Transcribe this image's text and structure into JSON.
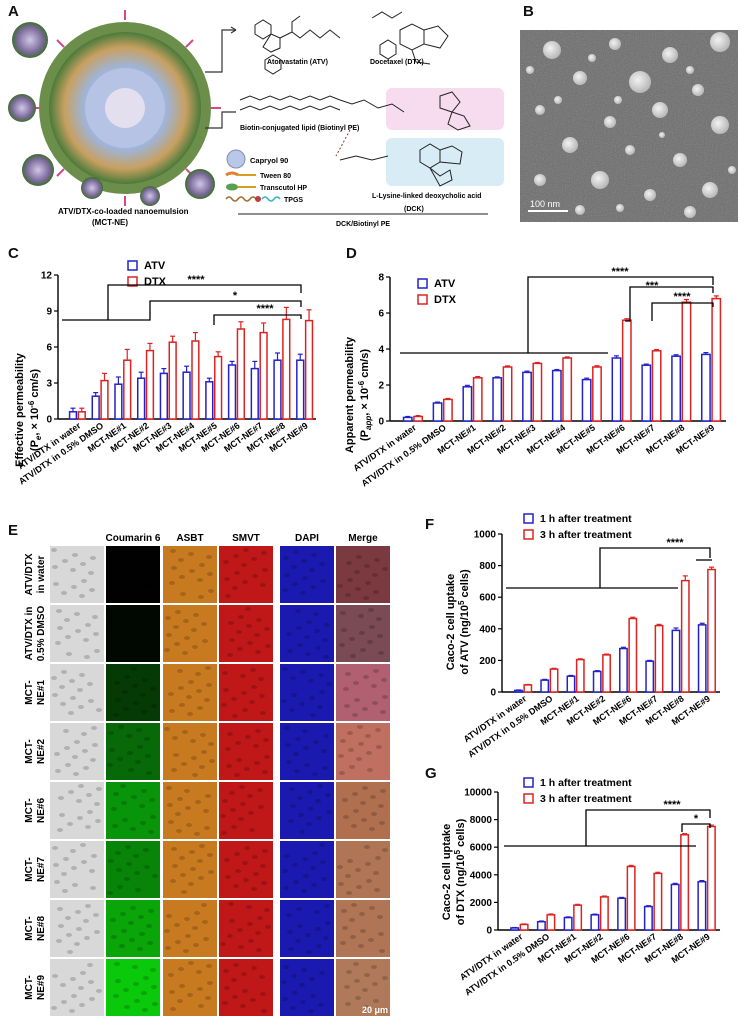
{
  "panels": {
    "a": "A",
    "b": "B",
    "c": "C",
    "d": "D",
    "e": "E",
    "f": "F",
    "g": "G"
  },
  "panelA": {
    "structures": {
      "atv": "Atorvastatin (ATV)",
      "dtx": "Docetaxel (DTX)",
      "biotinyl": "Biotin-conjugated lipid (Biotinyl PE)",
      "dck": "L-Lysine-linked deoxycholic acid",
      "dck_short": "(DCK)"
    },
    "legend": [
      "Capryol 90",
      "Tween 80",
      "Transcutol HP",
      "TPGS"
    ],
    "caption_line1": "ATV/DTX-co-loaded nanoemulsion",
    "caption_line2": "(MCT-NE)",
    "dck_biotinyl": "DCK/Biotinyl PE"
  },
  "panelB": {
    "scale": "100 nm"
  },
  "colors": {
    "atv": "#2222cc",
    "dtx": "#dd2222",
    "h1": "#2222cc",
    "h3": "#dd2222"
  },
  "panelE": {
    "columns": [
      "Coumarin 6",
      "ASBT",
      "SMVT",
      "DAPI",
      "Merge"
    ],
    "rows": [
      [
        "ATV/DTX",
        "in water"
      ],
      [
        "ATV/DTX in",
        "0.5% DMSO"
      ],
      [
        "MCT-",
        "NE#1"
      ],
      [
        "MCT-",
        "NE#2"
      ],
      [
        "MCT-",
        "NE#6"
      ],
      [
        "MCT-",
        "NE#7"
      ],
      [
        "MCT-",
        "NE#8"
      ],
      [
        "MCT-",
        "NE#9"
      ]
    ],
    "scale": "20 μm"
  },
  "chart_data": [
    {
      "id": "C",
      "type": "bar",
      "ylabel_line1": "Effective permeability",
      "ylabel_sym": "(P",
      "ylabel_sub": "e",
      "ylabel_rest": ", × 10",
      "ylabel_sup": "-6",
      "ylabel_unit": " cm/s)",
      "ylim": [
        0,
        12
      ],
      "yticks": [
        0,
        3,
        6,
        9,
        12
      ],
      "categories": [
        "ATV/DTX in water",
        "ATV/DTX in 0.5% DMSO",
        "MCT-NE#1",
        "MCT-NE#2",
        "MCT-NE#3",
        "MCT-NE#4",
        "MCT-NE#5",
        "MCT-NE#6",
        "MCT-NE#7",
        "MCT-NE#8",
        "MCT-NE#9"
      ],
      "series": [
        {
          "name": "ATV",
          "values": [
            0.6,
            1.9,
            2.9,
            3.4,
            3.8,
            3.9,
            3.1,
            4.5,
            4.2,
            4.9,
            4.9
          ],
          "errors": [
            0.3,
            0.3,
            0.6,
            0.5,
            0.4,
            0.5,
            0.3,
            0.3,
            0.6,
            0.6,
            0.5
          ]
        },
        {
          "name": "DTX",
          "values": [
            0.6,
            3.2,
            4.9,
            5.7,
            6.4,
            6.5,
            5.2,
            7.5,
            7.2,
            8.3,
            8.2
          ],
          "errors": [
            0.3,
            0.6,
            0.9,
            0.6,
            0.5,
            0.7,
            0.4,
            0.6,
            0.8,
            1.0,
            0.9
          ]
        }
      ],
      "annotations": [
        "****",
        "*",
        "****"
      ]
    },
    {
      "id": "D",
      "type": "bar",
      "ylabel_line1": "Apparent permeability",
      "ylabel_sym": "(P",
      "ylabel_sub": "app",
      "ylabel_rest": ", × 10",
      "ylabel_sup": "-6",
      "ylabel_unit": " cm/s)",
      "ylim": [
        0,
        8
      ],
      "yticks": [
        0,
        2,
        4,
        6,
        8
      ],
      "categories": [
        "ATV/DTX in water",
        "ATV/DTX in 0.5% DMSO",
        "MCT-NE#1",
        "MCT-NE#2",
        "MCT-NE#3",
        "MCT-NE#4",
        "MCT-NE#5",
        "MCT-NE#6",
        "MCT-NE#7",
        "MCT-NE#8",
        "MCT-NE#9"
      ],
      "series": [
        {
          "name": "ATV",
          "values": [
            0.2,
            1.0,
            1.9,
            2.4,
            2.7,
            2.8,
            2.3,
            3.5,
            3.1,
            3.6,
            3.7
          ],
          "errors": [
            0.05,
            0.05,
            0.08,
            0.05,
            0.07,
            0.06,
            0.08,
            0.12,
            0.06,
            0.08,
            0.1
          ]
        },
        {
          "name": "DTX",
          "values": [
            0.25,
            1.2,
            2.4,
            3.0,
            3.2,
            3.5,
            3.0,
            5.6,
            3.9,
            6.6,
            6.8
          ],
          "errors": [
            0.05,
            0.05,
            0.07,
            0.06,
            0.05,
            0.06,
            0.07,
            0.08,
            0.07,
            0.15,
            0.15
          ]
        }
      ],
      "annotations": [
        "****",
        "***",
        "****"
      ]
    },
    {
      "id": "F",
      "type": "bar",
      "ylabel_line1": "Caco-2 cell uptake",
      "ylabel_line2": "of ATV (ng/10",
      "ylabel_sup": "5",
      "ylabel_unit": " cells)",
      "ylim": [
        0,
        1000
      ],
      "yticks": [
        0,
        200,
        400,
        600,
        800,
        1000
      ],
      "categories": [
        "ATV/DTX in water",
        "ATV/DTX in 0.5% DMSO",
        "MCT-NE#1",
        "MCT-NE#2",
        "MCT-NE#6",
        "MCT-NE#7",
        "MCT-NE#8",
        "MCT-NE#9"
      ],
      "series": [
        {
          "name": "1 h after treatment",
          "values": [
            10,
            75,
            100,
            130,
            275,
            195,
            390,
            425
          ],
          "errors": [
            3,
            5,
            5,
            5,
            8,
            5,
            15,
            10
          ]
        },
        {
          "name": "3 h after treatment",
          "values": [
            45,
            145,
            205,
            235,
            465,
            420,
            705,
            775
          ],
          "errors": [
            3,
            5,
            5,
            5,
            8,
            8,
            30,
            15
          ]
        }
      ],
      "annotations": [
        "****"
      ]
    },
    {
      "id": "G",
      "type": "bar",
      "ylabel_line1": "Caco-2 cell uptake",
      "ylabel_line2": "of DTX (ng/10",
      "ylabel_sup": "5",
      "ylabel_unit": " cells)",
      "ylim": [
        0,
        10000
      ],
      "yticks": [
        0,
        2000,
        4000,
        6000,
        8000,
        10000
      ],
      "categories": [
        "ATV/DTX in water",
        "ATV/DTX in 0.5% DMSO",
        "MCT-NE#1",
        "MCT-NE#2",
        "MCT-NE#6",
        "MCT-NE#7",
        "MCT-NE#8",
        "MCT-NE#9"
      ],
      "series": [
        {
          "name": "1 h after treatment",
          "values": [
            150,
            600,
            900,
            1100,
            2300,
            1700,
            3300,
            3500
          ],
          "errors": [
            30,
            50,
            50,
            50,
            60,
            60,
            80,
            80
          ]
        },
        {
          "name": "3 h after treatment",
          "values": [
            400,
            1100,
            1800,
            2400,
            4600,
            4100,
            6900,
            7500
          ],
          "errors": [
            40,
            60,
            60,
            60,
            80,
            80,
            80,
            100
          ]
        }
      ],
      "annotations": [
        "****",
        "*"
      ]
    }
  ]
}
